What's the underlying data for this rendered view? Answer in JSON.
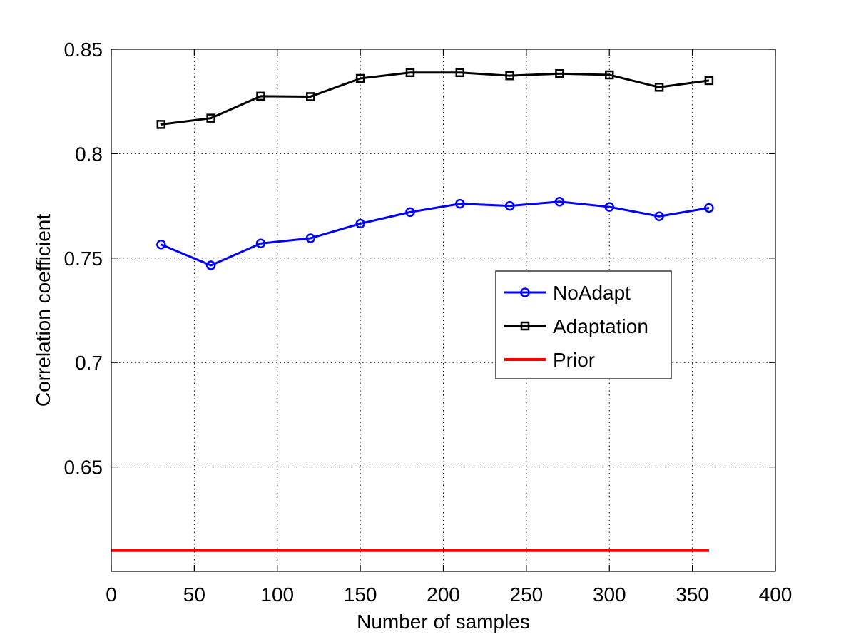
{
  "chart_data": {
    "type": "line",
    "title": "",
    "xlabel": "Number of samples",
    "ylabel": "Correlation coefficient",
    "xlim": [
      0,
      400
    ],
    "ylim": [
      0.6,
      0.85
    ],
    "xticks": [
      0,
      50,
      100,
      150,
      200,
      250,
      300,
      350,
      400
    ],
    "yticks": [
      0.65,
      0.7,
      0.75,
      0.8,
      0.85
    ],
    "xtick_labels": [
      "0",
      "50",
      "100",
      "150",
      "200",
      "250",
      "300",
      "350",
      "400"
    ],
    "ytick_labels": [
      "0.65",
      "0.7",
      "0.75",
      "0.8",
      "0.85"
    ],
    "grid": true,
    "legend_position": "center-right",
    "series": [
      {
        "name": "NoAdapt",
        "color": "#0000ff",
        "marker": "circle",
        "x": [
          30,
          60,
          90,
          120,
          150,
          180,
          210,
          240,
          270,
          300,
          330,
          360
        ],
        "y": [
          0.7565,
          0.7465,
          0.757,
          0.7595,
          0.7665,
          0.772,
          0.776,
          0.775,
          0.777,
          0.7745,
          0.77,
          0.774
        ]
      },
      {
        "name": "Adaptation",
        "color": "#000000",
        "marker": "square",
        "x": [
          30,
          60,
          90,
          120,
          150,
          180,
          210,
          240,
          270,
          300,
          330,
          360
        ],
        "y": [
          0.814,
          0.817,
          0.8275,
          0.8273,
          0.836,
          0.8388,
          0.8388,
          0.8373,
          0.8383,
          0.8377,
          0.8318,
          0.835
        ]
      },
      {
        "name": "Prior",
        "color": "#ff0000",
        "marker": "none",
        "x": [
          0,
          360
        ],
        "y": [
          0.61,
          0.61
        ]
      }
    ]
  }
}
